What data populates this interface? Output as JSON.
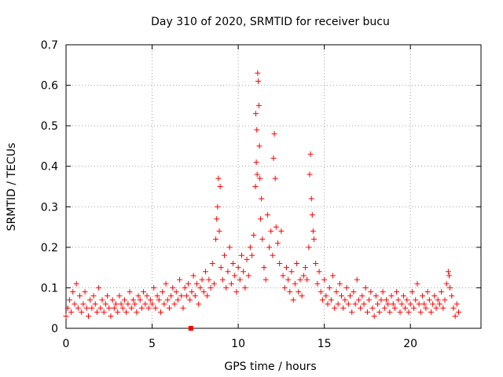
{
  "chart_data": {
    "type": "scatter",
    "title": "Day 310 of 2020, SRMTID for receiver bucu",
    "xlabel": "GPS time / hours",
    "ylabel": "SRMTID / TECUs",
    "xlim": [
      0,
      24.1
    ],
    "ylim": [
      0,
      0.7
    ],
    "xticks": [
      0,
      5,
      10,
      15,
      20
    ],
    "xtick_labels": [
      "0",
      "5",
      "10",
      "15",
      "20"
    ],
    "yticks": [
      0,
      0.1,
      0.2,
      0.3,
      0.4,
      0.5,
      0.6,
      0.7
    ],
    "ytick_labels": [
      "0",
      "0.1",
      "0.2",
      "0.3",
      "0.4",
      "0.5",
      "0.6",
      "0.7"
    ],
    "grid": true,
    "marker": "+",
    "color": "#ff0000",
    "series": [
      {
        "name": "SRMTID",
        "points": [
          [
            0.0,
            0.03
          ],
          [
            0.1,
            0.05
          ],
          [
            0.2,
            0.07
          ],
          [
            0.3,
            0.04
          ],
          [
            0.4,
            0.09
          ],
          [
            0.5,
            0.06
          ],
          [
            0.6,
            0.11
          ],
          [
            0.7,
            0.05
          ],
          [
            0.8,
            0.08
          ],
          [
            0.9,
            0.04
          ],
          [
            1.0,
            0.06
          ],
          [
            1.1,
            0.09
          ],
          [
            1.2,
            0.05
          ],
          [
            1.3,
            0.03
          ],
          [
            1.4,
            0.07
          ],
          [
            1.5,
            0.05
          ],
          [
            1.6,
            0.08
          ],
          [
            1.7,
            0.06
          ],
          [
            1.8,
            0.04
          ],
          [
            1.9,
            0.1
          ],
          [
            2.0,
            0.05
          ],
          [
            2.1,
            0.07
          ],
          [
            2.2,
            0.04
          ],
          [
            2.3,
            0.06
          ],
          [
            2.4,
            0.08
          ],
          [
            2.5,
            0.05
          ],
          [
            2.6,
            0.03
          ],
          [
            2.7,
            0.07
          ],
          [
            2.8,
            0.05
          ],
          [
            2.9,
            0.06
          ],
          [
            3.0,
            0.04
          ],
          [
            3.1,
            0.08
          ],
          [
            3.2,
            0.06
          ],
          [
            3.3,
            0.05
          ],
          [
            3.4,
            0.07
          ],
          [
            3.5,
            0.04
          ],
          [
            3.6,
            0.06
          ],
          [
            3.7,
            0.09
          ],
          [
            3.8,
            0.05
          ],
          [
            3.9,
            0.07
          ],
          [
            4.0,
            0.06
          ],
          [
            4.1,
            0.04
          ],
          [
            4.2,
            0.08
          ],
          [
            4.3,
            0.07
          ],
          [
            4.4,
            0.05
          ],
          [
            4.5,
            0.09
          ],
          [
            4.6,
            0.06
          ],
          [
            4.7,
            0.08
          ],
          [
            4.8,
            0.05
          ],
          [
            4.9,
            0.07
          ],
          [
            5.0,
            0.06
          ],
          [
            5.1,
            0.1
          ],
          [
            5.2,
            0.05
          ],
          [
            5.3,
            0.08
          ],
          [
            5.4,
            0.07
          ],
          [
            5.5,
            0.04
          ],
          [
            5.6,
            0.09
          ],
          [
            5.7,
            0.06
          ],
          [
            5.8,
            0.11
          ],
          [
            5.9,
            0.07
          ],
          [
            6.0,
            0.05
          ],
          [
            6.1,
            0.08
          ],
          [
            6.2,
            0.1
          ],
          [
            6.3,
            0.06
          ],
          [
            6.4,
            0.09
          ],
          [
            6.5,
            0.07
          ],
          [
            6.6,
            0.12
          ],
          [
            6.7,
            0.08
          ],
          [
            6.8,
            0.05
          ],
          [
            6.9,
            0.1
          ],
          [
            7.0,
            0.08
          ],
          [
            7.1,
            0.11
          ],
          [
            7.2,
            0.07
          ],
          [
            7.3,
            0.09
          ],
          [
            7.4,
            0.13
          ],
          [
            7.5,
            0.08
          ],
          [
            7.6,
            0.11
          ],
          [
            7.7,
            0.06
          ],
          [
            7.8,
            0.1
          ],
          [
            7.9,
            0.12
          ],
          [
            8.0,
            0.09
          ],
          [
            8.1,
            0.14
          ],
          [
            8.2,
            0.08
          ],
          [
            8.3,
            0.12
          ],
          [
            8.4,
            0.1
          ],
          [
            8.5,
            0.16
          ],
          [
            8.6,
            0.11
          ],
          [
            8.7,
            0.22
          ],
          [
            8.75,
            0.27
          ],
          [
            8.8,
            0.3
          ],
          [
            8.85,
            0.37
          ],
          [
            8.9,
            0.24
          ],
          [
            8.95,
            0.35
          ],
          [
            9.0,
            0.15
          ],
          [
            9.1,
            0.12
          ],
          [
            9.2,
            0.18
          ],
          [
            9.3,
            0.1
          ],
          [
            9.4,
            0.14
          ],
          [
            9.5,
            0.2
          ],
          [
            9.6,
            0.11
          ],
          [
            9.7,
            0.16
          ],
          [
            9.8,
            0.13
          ],
          [
            9.9,
            0.09
          ],
          [
            10.0,
            0.15
          ],
          [
            10.1,
            0.12
          ],
          [
            10.2,
            0.18
          ],
          [
            10.3,
            0.14
          ],
          [
            10.4,
            0.1
          ],
          [
            10.5,
            0.17
          ],
          [
            10.6,
            0.13
          ],
          [
            10.7,
            0.2
          ],
          [
            10.8,
            0.18
          ],
          [
            10.9,
            0.23
          ],
          [
            11.0,
            0.35
          ],
          [
            11.02,
            0.53
          ],
          [
            11.05,
            0.41
          ],
          [
            11.08,
            0.49
          ],
          [
            11.1,
            0.38
          ],
          [
            11.13,
            0.63
          ],
          [
            11.16,
            0.61
          ],
          [
            11.2,
            0.55
          ],
          [
            11.23,
            0.45
          ],
          [
            11.26,
            0.37
          ],
          [
            11.3,
            0.27
          ],
          [
            11.35,
            0.32
          ],
          [
            11.4,
            0.22
          ],
          [
            11.5,
            0.15
          ],
          [
            11.6,
            0.12
          ],
          [
            11.7,
            0.28
          ],
          [
            11.8,
            0.2
          ],
          [
            11.9,
            0.24
          ],
          [
            12.0,
            0.18
          ],
          [
            12.05,
            0.42
          ],
          [
            12.1,
            0.48
          ],
          [
            12.15,
            0.37
          ],
          [
            12.2,
            0.25
          ],
          [
            12.3,
            0.21
          ],
          [
            12.4,
            0.16
          ],
          [
            12.5,
            0.24
          ],
          [
            12.6,
            0.13
          ],
          [
            12.7,
            0.1
          ],
          [
            12.8,
            0.15
          ],
          [
            12.9,
            0.12
          ],
          [
            13.0,
            0.09
          ],
          [
            13.1,
            0.14
          ],
          [
            13.2,
            0.07
          ],
          [
            13.3,
            0.11
          ],
          [
            13.4,
            0.16
          ],
          [
            13.5,
            0.09
          ],
          [
            13.6,
            0.12
          ],
          [
            13.7,
            0.08
          ],
          [
            13.8,
            0.13
          ],
          [
            13.9,
            0.15
          ],
          [
            14.0,
            0.12
          ],
          [
            14.1,
            0.2
          ],
          [
            14.15,
            0.38
          ],
          [
            14.2,
            0.43
          ],
          [
            14.25,
            0.32
          ],
          [
            14.3,
            0.28
          ],
          [
            14.35,
            0.24
          ],
          [
            14.4,
            0.22
          ],
          [
            14.5,
            0.16
          ],
          [
            14.6,
            0.11
          ],
          [
            14.7,
            0.14
          ],
          [
            14.8,
            0.09
          ],
          [
            14.9,
            0.07
          ],
          [
            15.0,
            0.12
          ],
          [
            15.1,
            0.08
          ],
          [
            15.2,
            0.06
          ],
          [
            15.3,
            0.1
          ],
          [
            15.4,
            0.07
          ],
          [
            15.5,
            0.13
          ],
          [
            15.6,
            0.05
          ],
          [
            15.7,
            0.09
          ],
          [
            15.8,
            0.06
          ],
          [
            15.9,
            0.11
          ],
          [
            16.0,
            0.08
          ],
          [
            16.1,
            0.05
          ],
          [
            16.2,
            0.07
          ],
          [
            16.3,
            0.1
          ],
          [
            16.4,
            0.06
          ],
          [
            16.5,
            0.08
          ],
          [
            16.6,
            0.04
          ],
          [
            16.7,
            0.09
          ],
          [
            16.8,
            0.06
          ],
          [
            16.9,
            0.12
          ],
          [
            17.0,
            0.07
          ],
          [
            17.1,
            0.05
          ],
          [
            17.2,
            0.08
          ],
          [
            17.3,
            0.06
          ],
          [
            17.4,
            0.1
          ],
          [
            17.5,
            0.04
          ],
          [
            17.6,
            0.07
          ],
          [
            17.7,
            0.09
          ],
          [
            17.8,
            0.05
          ],
          [
            17.9,
            0.03
          ],
          [
            18.0,
            0.08
          ],
          [
            18.1,
            0.06
          ],
          [
            18.2,
            0.04
          ],
          [
            18.3,
            0.07
          ],
          [
            18.4,
            0.09
          ],
          [
            18.5,
            0.05
          ],
          [
            18.6,
            0.07
          ],
          [
            18.7,
            0.06
          ],
          [
            18.8,
            0.04
          ],
          [
            18.9,
            0.08
          ],
          [
            19.0,
            0.06
          ],
          [
            19.1,
            0.05
          ],
          [
            19.2,
            0.09
          ],
          [
            19.3,
            0.07
          ],
          [
            19.4,
            0.04
          ],
          [
            19.5,
            0.06
          ],
          [
            19.6,
            0.08
          ],
          [
            19.7,
            0.05
          ],
          [
            19.8,
            0.07
          ],
          [
            19.9,
            0.04
          ],
          [
            20.0,
            0.06
          ],
          [
            20.1,
            0.09
          ],
          [
            20.2,
            0.05
          ],
          [
            20.3,
            0.07
          ],
          [
            20.4,
            0.11
          ],
          [
            20.5,
            0.06
          ],
          [
            20.6,
            0.04
          ],
          [
            20.7,
            0.08
          ],
          [
            20.8,
            0.06
          ],
          [
            20.9,
            0.05
          ],
          [
            21.0,
            0.09
          ],
          [
            21.1,
            0.07
          ],
          [
            21.2,
            0.04
          ],
          [
            21.3,
            0.06
          ],
          [
            21.4,
            0.08
          ],
          [
            21.5,
            0.05
          ],
          [
            21.6,
            0.07
          ],
          [
            21.7,
            0.06
          ],
          [
            21.8,
            0.09
          ],
          [
            21.9,
            0.05
          ],
          [
            22.0,
            0.07
          ],
          [
            22.1,
            0.11
          ],
          [
            22.2,
            0.14
          ],
          [
            22.25,
            0.13
          ],
          [
            22.3,
            0.1
          ],
          [
            22.4,
            0.08
          ],
          [
            22.5,
            0.05
          ],
          [
            22.6,
            0.03
          ],
          [
            22.7,
            0.06
          ],
          [
            22.8,
            0.04
          ]
        ]
      }
    ],
    "markers": [
      {
        "x": 7.25,
        "y": 0.0,
        "shape": "square"
      }
    ]
  }
}
